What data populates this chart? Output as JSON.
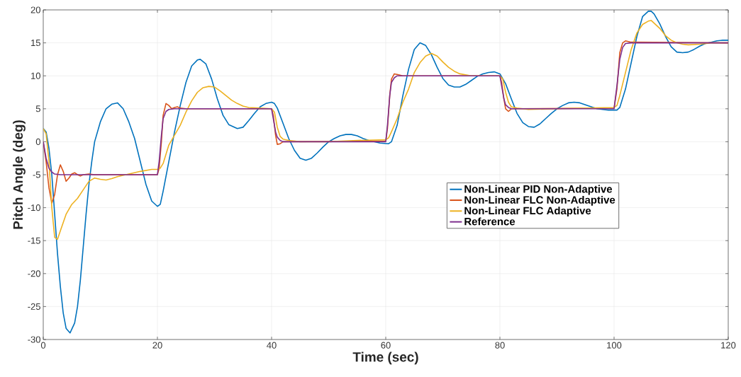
{
  "chart_data": {
    "type": "line",
    "xlabel": "Time (sec)",
    "ylabel": "Pitch Angle (deg)",
    "xlim": [
      0,
      120
    ],
    "ylim": [
      -30,
      20
    ],
    "xticks": [
      0,
      20,
      40,
      60,
      80,
      100,
      120
    ],
    "yticks": [
      -30,
      -25,
      -20,
      -15,
      -10,
      -5,
      0,
      5,
      10,
      15,
      20
    ],
    "grid": true,
    "legend": "right",
    "marker": "none",
    "line_style": "solid",
    "series": [
      {
        "name": "Non-Linear PID Non-Adaptive",
        "color": "#0072bd",
        "x": [
          0,
          0.5,
          1,
          1.5,
          2,
          2.5,
          3,
          3.5,
          4,
          4.7,
          5.5,
          6,
          6.5,
          7,
          7.5,
          8,
          8.5,
          9,
          10,
          11,
          12,
          13,
          14,
          15,
          16,
          17,
          18,
          19,
          20,
          20.5,
          21,
          22,
          23,
          24,
          25,
          26,
          27,
          27.5,
          28.5,
          29.5,
          30.5,
          31.5,
          32.5,
          34,
          35,
          36,
          37,
          38,
          39,
          40,
          40.5,
          41,
          42,
          43,
          44,
          45,
          46,
          47,
          48,
          49,
          50,
          51,
          52,
          53,
          54,
          55,
          56,
          57,
          58,
          59,
          60.5,
          61,
          62,
          63,
          64,
          65,
          66,
          67,
          68,
          69,
          70,
          71,
          72,
          73,
          74,
          75,
          76,
          77,
          78,
          79,
          80,
          81,
          82,
          83,
          84,
          85,
          86,
          87,
          88,
          89,
          90,
          91,
          92,
          93,
          94,
          95,
          96,
          97,
          98,
          99,
          100.5,
          101,
          102,
          103,
          104,
          105,
          106,
          106.5,
          107,
          108,
          109,
          110,
          111,
          112,
          113,
          114,
          115,
          116,
          117,
          118,
          119,
          120
        ],
        "values": [
          2,
          1.5,
          -1,
          -5,
          -11,
          -17,
          -22,
          -26,
          -28.3,
          -29,
          -27.5,
          -25,
          -21,
          -16,
          -11,
          -6.5,
          -3,
          0,
          3,
          5,
          5.7,
          5.9,
          5,
          3,
          0.5,
          -3,
          -6.5,
          -9,
          -9.8,
          -9.5,
          -7.5,
          -3,
          1.5,
          5.5,
          9,
          11.5,
          12.4,
          12.5,
          11.8,
          9.5,
          6.5,
          4,
          2.6,
          2,
          2.2,
          3.2,
          4.3,
          5.3,
          5.8,
          6,
          5.8,
          5.1,
          2.8,
          0.5,
          -1.3,
          -2.5,
          -2.8,
          -2.5,
          -1.7,
          -0.8,
          0,
          0.5,
          0.9,
          1.1,
          1.1,
          0.9,
          0.5,
          0.2,
          0,
          -0.2,
          -0.3,
          0,
          2.5,
          7,
          11,
          14,
          15,
          14.6,
          13.2,
          11.3,
          9.6,
          8.6,
          8.3,
          8.3,
          8.7,
          9.3,
          9.9,
          10.3,
          10.5,
          10.6,
          10.3,
          8.8,
          6.5,
          4.3,
          2.9,
          2.3,
          2.2,
          2.7,
          3.5,
          4.3,
          5,
          5.5,
          5.9,
          6,
          5.9,
          5.6,
          5.3,
          5,
          4.9,
          4.8,
          4.8,
          5.2,
          8,
          12,
          16,
          19,
          19.8,
          19.8,
          19.4,
          17.9,
          16,
          14.4,
          13.6,
          13.5,
          13.6,
          14,
          14.5,
          14.9,
          15.1,
          15.3,
          15.4,
          15.4
        ]
      },
      {
        "name": "Non-Linear FLC Non-Adaptive",
        "color": "#d95319",
        "x": [
          0,
          0.5,
          1,
          1.5,
          2,
          2.5,
          3,
          3.5,
          4,
          4.5,
          5,
          5.5,
          6,
          6.5,
          7,
          8,
          9,
          20,
          20.3,
          20.7,
          21,
          21.5,
          22,
          22.5,
          23,
          23.5,
          24,
          25,
          40,
          40.3,
          40.7,
          41,
          41.5,
          42,
          60,
          60.3,
          60.7,
          61,
          61.5,
          62,
          63,
          80,
          80.3,
          80.7,
          81,
          81.5,
          82,
          100,
          100.5,
          101,
          101.5,
          102,
          103,
          120
        ],
        "values": [
          0,
          -3,
          -7,
          -9.3,
          -8,
          -5,
          -3.5,
          -4.5,
          -6,
          -5.5,
          -4.9,
          -4.7,
          -5,
          -5.2,
          -5,
          -4.9,
          -5,
          -5,
          -4,
          0,
          4,
          5.8,
          5.5,
          5,
          5.2,
          5.3,
          5.1,
          5,
          5,
          4,
          1,
          -0.4,
          -0.3,
          0,
          0.1,
          2,
          7,
          9.5,
          10.3,
          10.2,
          10,
          10,
          9,
          6.5,
          5,
          4.6,
          5,
          5.1,
          8,
          13.5,
          15,
          15.3,
          15.1,
          15
        ]
      },
      {
        "name": "Non-Linear FLC Adaptive",
        "color": "#edb120",
        "x": [
          0,
          0.5,
          1,
          1.5,
          2,
          2.5,
          3,
          4,
          5,
          6,
          7,
          8,
          9,
          10,
          11,
          12,
          13,
          15,
          17,
          19,
          20,
          20.5,
          21,
          22,
          23,
          24,
          25,
          26,
          27,
          28,
          29,
          30,
          31,
          32,
          33,
          34,
          35,
          36,
          38,
          40,
          40.5,
          41,
          41.5,
          42,
          43,
          45,
          50,
          55,
          60,
          60.5,
          61,
          62,
          63,
          64,
          65,
          66,
          67,
          68,
          69,
          70,
          71,
          72,
          73,
          75,
          80,
          80.5,
          81,
          81.5,
          82,
          83,
          85,
          90,
          95,
          100,
          100.5,
          101,
          102,
          103,
          104,
          105,
          106,
          106.5,
          107,
          108,
          109,
          110,
          111,
          112,
          113,
          115,
          117,
          120
        ],
        "values": [
          2,
          1.2,
          -3,
          -10,
          -14.5,
          -14.8,
          -13.5,
          -11,
          -9.5,
          -8.6,
          -7.3,
          -6,
          -5.5,
          -5.7,
          -5.8,
          -5.6,
          -5.3,
          -4.9,
          -4.5,
          -4.2,
          -4.2,
          -4,
          -3.3,
          -0.5,
          1,
          2.5,
          4.5,
          6.2,
          7.5,
          8.2,
          8.4,
          8.3,
          7.7,
          7,
          6.3,
          5.8,
          5.4,
          5.2,
          5.1,
          5,
          4.5,
          2.2,
          0.8,
          0.4,
          0.2,
          0,
          0,
          0.2,
          0.3,
          0.6,
          1.5,
          3.5,
          6,
          8,
          10.5,
          12,
          13,
          13.4,
          13,
          12.1,
          11.3,
          10.7,
          10.3,
          10,
          10,
          9.5,
          7.5,
          6,
          5.3,
          5.1,
          4.9,
          5,
          5.1,
          5.2,
          5.5,
          7,
          10.5,
          14,
          16.5,
          17.8,
          18.3,
          18.4,
          18,
          17.2,
          16.1,
          15.4,
          15,
          14.8,
          14.7,
          14.8,
          15,
          15
        ]
      },
      {
        "name": "Reference",
        "color": "#7e2f8e",
        "x": [
          0,
          0.5,
          1,
          1.5,
          2,
          3,
          20,
          20.3,
          20.7,
          21,
          21.5,
          22,
          23,
          40,
          40.3,
          40.7,
          41,
          41.5,
          42,
          60,
          60.3,
          60.7,
          61,
          61.5,
          62,
          80,
          80.3,
          80.7,
          81,
          81.5,
          82,
          100,
          100.5,
          101,
          101.5,
          102,
          103,
          120
        ],
        "values": [
          0,
          -2.5,
          -4,
          -4.6,
          -4.9,
          -5,
          -5,
          -3,
          1,
          3.5,
          4.6,
          4.9,
          5,
          5,
          3.5,
          1.5,
          0.7,
          0.2,
          0,
          0,
          2.5,
          7,
          9,
          9.7,
          10,
          10,
          8.5,
          6.5,
          5.6,
          5.2,
          5,
          5,
          8.5,
          12.5,
          14.3,
          14.9,
          15,
          15
        ]
      }
    ]
  }
}
